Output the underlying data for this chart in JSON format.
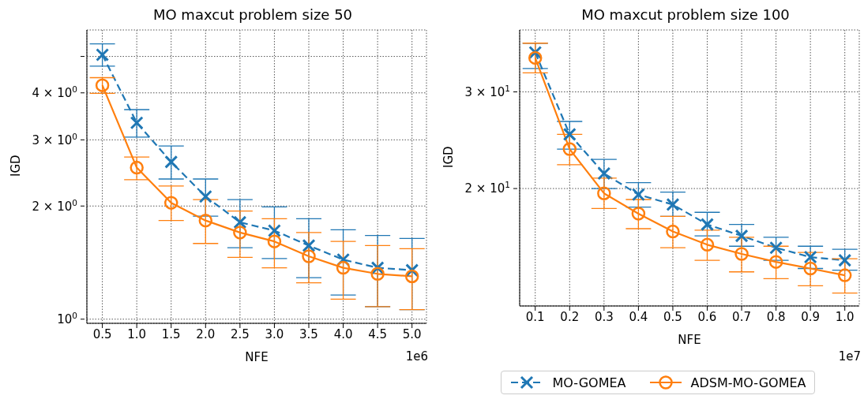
{
  "chart_data": [
    {
      "type": "line",
      "title": "MO maxcut problem size 50",
      "xlabel": "NFE",
      "ylabel": "IGD",
      "log": "y",
      "grid": true,
      "annotations": [
        "1e6"
      ],
      "x": [
        0.5,
        1.0,
        1.5,
        2.0,
        2.5,
        3.0,
        3.5,
        4.0,
        4.5,
        5.0
      ],
      "xlim": [
        0.275,
        5.21
      ],
      "xticks": [
        0.5,
        {
          "value": 1,
          "label": "1.0"
        },
        1.5,
        {
          "value": 2,
          "label": "2.0"
        },
        2.5,
        {
          "value": 3,
          "label": "3.0"
        },
        3.5,
        {
          "value": 4,
          "label": "4.0"
        },
        4.5,
        {
          "value": 5,
          "label": "5.0"
        }
      ],
      "ylim": [
        0.975,
        5.88
      ],
      "yticks": [
        {
          "value": 1,
          "label": "10$^{0}$"
        },
        {
          "value": 2,
          "label": "2 × 10$^{0}$"
        },
        {
          "value": 3,
          "label": "3 × 10$^{0}$"
        },
        {
          "value": 4,
          "label": "4 × 10$^{0}$"
        },
        {
          "value": 5,
          "label": null
        }
      ],
      "series": [
        {
          "color": "#1f77b4",
          "marker": "cross",
          "line_style": "dashed",
          "values": [
            5.05,
            3.33,
            2.62,
            2.12,
            1.81,
            1.72,
            1.57,
            1.44,
            1.37,
            1.35
          ],
          "errors": [
            [
              4.71,
              5.4
            ],
            [
              3.05,
              3.61
            ],
            [
              2.36,
              2.89
            ],
            [
              1.88,
              2.36
            ],
            [
              1.55,
              2.08
            ],
            [
              1.45,
              1.99
            ],
            [
              1.29,
              1.85
            ],
            [
              1.16,
              1.73
            ],
            [
              1.08,
              1.67
            ],
            [
              1.06,
              1.64
            ]
          ]
        },
        {
          "color": "#ff7f0e",
          "marker": "circle",
          "line_style": "solid",
          "values": [
            4.19,
            2.53,
            2.04,
            1.83,
            1.7,
            1.61,
            1.47,
            1.37,
            1.32,
            1.3
          ],
          "errors": [
            [
              3.99,
              4.39
            ],
            [
              2.35,
              2.7
            ],
            [
              1.83,
              2.26
            ],
            [
              1.59,
              2.08
            ],
            [
              1.46,
              1.94
            ],
            [
              1.37,
              1.85
            ],
            [
              1.25,
              1.7
            ],
            [
              1.13,
              1.61
            ],
            [
              1.08,
              1.57
            ],
            [
              1.06,
              1.54
            ]
          ]
        }
      ]
    },
    {
      "type": "line",
      "title": "MO maxcut problem size 100",
      "xlabel": "NFE",
      "ylabel": "IGD",
      "log": "y",
      "grid": true,
      "legend": "bottom",
      "annotations": [
        "1e7"
      ],
      "x": [
        0.1,
        0.2,
        0.3,
        0.4,
        0.5,
        0.6,
        0.7,
        0.8,
        0.9,
        1.0
      ],
      "xlim": [
        0.0547,
        1.042
      ],
      "xticks": [
        0.1,
        0.2,
        0.3,
        0.4,
        0.5,
        0.6,
        0.7,
        0.8,
        0.9,
        {
          "value": 1,
          "label": "1.0"
        }
      ],
      "ylim": [
        12.22,
        38.9
      ],
      "yticks": [
        {
          "value": 20,
          "label": "2 × 10$^{1}$"
        },
        {
          "value": 30,
          "label": "3 × 10$^{1}$"
        }
      ],
      "series": [
        {
          "name": "MO-GOMEA",
          "color": "#1f77b4",
          "marker": "cross",
          "line_style": "dashed",
          "values": [
            35.4,
            25.1,
            21.3,
            19.5,
            18.7,
            17.2,
            16.4,
            15.6,
            15.0,
            14.8
          ],
          "errors": [
            [
              33.1,
              36.8
            ],
            [
              23.6,
              26.5
            ],
            [
              20.0,
              22.6
            ],
            [
              18.5,
              20.5
            ],
            [
              17.8,
              19.7
            ],
            [
              16.4,
              18.1
            ],
            [
              15.7,
              17.2
            ],
            [
              14.8,
              16.3
            ],
            [
              14.3,
              15.7
            ],
            [
              14.2,
              15.5
            ]
          ]
        },
        {
          "name": "ADSM-MO-GOMEA",
          "color": "#ff7f0e",
          "marker": "circle",
          "line_style": "solid",
          "values": [
            34.6,
            23.6,
            19.6,
            18.0,
            16.7,
            15.8,
            15.2,
            14.7,
            14.3,
            13.9
          ],
          "errors": [
            [
              32.5,
              36.8
            ],
            [
              22.1,
              25.1
            ],
            [
              18.4,
              20.9
            ],
            [
              16.9,
              19.1
            ],
            [
              15.6,
              17.8
            ],
            [
              14.8,
              16.8
            ],
            [
              14.1,
              16.3
            ],
            [
              13.7,
              15.7
            ],
            [
              13.3,
              15.3
            ],
            [
              12.9,
              14.9
            ]
          ]
        }
      ]
    }
  ]
}
